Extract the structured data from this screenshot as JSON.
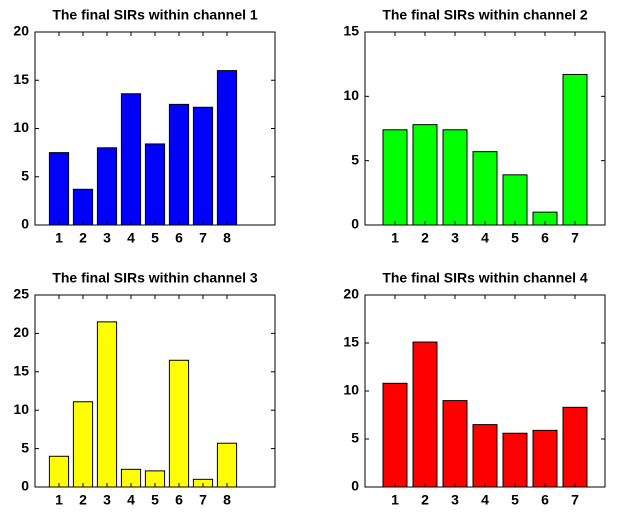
{
  "chart_data": [
    {
      "type": "bar",
      "title": "The final SIRs within channel 1",
      "x": [
        1,
        2,
        3,
        4,
        5,
        6,
        7,
        8
      ],
      "values": [
        7.5,
        3.7,
        8.0,
        13.6,
        8.4,
        12.5,
        12.2,
        16.0
      ],
      "color": "#0000ff",
      "xlim": [
        0,
        10
      ],
      "xticks": [
        1,
        2,
        3,
        4,
        5,
        6,
        7,
        8
      ],
      "ylim": [
        0,
        20
      ],
      "yticks": [
        0,
        5,
        10,
        15,
        20
      ]
    },
    {
      "type": "bar",
      "title": "The final SIRs within channel 2",
      "x": [
        1,
        2,
        3,
        4,
        5,
        6,
        7
      ],
      "values": [
        7.4,
        7.8,
        7.4,
        5.7,
        3.9,
        1.0,
        11.7
      ],
      "color": "#00ff00",
      "xlim": [
        0,
        8
      ],
      "xticks": [
        1,
        2,
        3,
        4,
        5,
        6,
        7
      ],
      "ylim": [
        0,
        15
      ],
      "yticks": [
        0,
        5,
        10,
        15
      ]
    },
    {
      "type": "bar",
      "title": "The final SIRs within channel 3",
      "x": [
        1,
        2,
        3,
        4,
        5,
        6,
        7,
        8
      ],
      "values": [
        4.0,
        11.1,
        21.5,
        2.3,
        2.1,
        16.5,
        1.0,
        5.7
      ],
      "color": "#ffff00",
      "xlim": [
        0,
        10
      ],
      "xticks": [
        1,
        2,
        3,
        4,
        5,
        6,
        7,
        8
      ],
      "ylim": [
        0,
        25
      ],
      "yticks": [
        0,
        5,
        10,
        15,
        20,
        25
      ]
    },
    {
      "type": "bar",
      "title": "The final SIRs within channel 4",
      "x": [
        1,
        2,
        3,
        4,
        5,
        6,
        7
      ],
      "values": [
        10.8,
        15.1,
        9.0,
        6.5,
        5.6,
        5.9,
        8.3
      ],
      "color": "#ff0000",
      "xlim": [
        0,
        8
      ],
      "xticks": [
        1,
        2,
        3,
        4,
        5,
        6,
        7
      ],
      "ylim": [
        0,
        20
      ],
      "yticks": [
        0,
        5,
        10,
        15,
        20
      ]
    }
  ]
}
